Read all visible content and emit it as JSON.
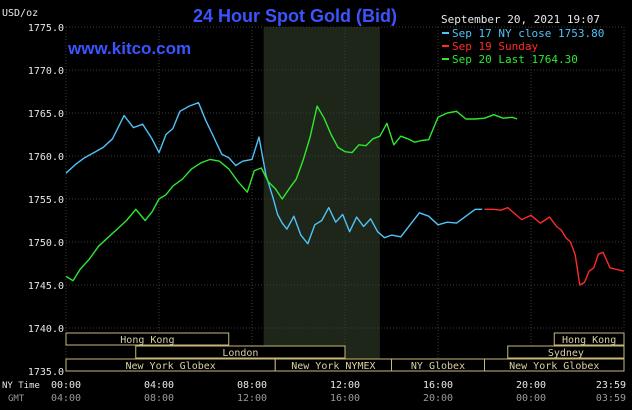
{
  "chart_data": {
    "type": "line",
    "title": "24 Hour Spot Gold (Bid)",
    "watermark": "www.kitco.com",
    "datetime": "September 20, 2021 19:07",
    "ylabel": "USD/oz",
    "ylim": [
      1735.0,
      1775.0
    ],
    "yticks": [
      "1775.0",
      "1770.0",
      "1765.0",
      "1760.0",
      "1755.0",
      "1750.0",
      "1745.0",
      "1740.0",
      "1735.0"
    ],
    "xlim": [
      0,
      24
    ],
    "xtick_labels_ny": [
      "00:00",
      "04:00",
      "08:00",
      "12:00",
      "16:00",
      "20:00",
      "23:59"
    ],
    "xtick_labels_gmt": [
      "04:00",
      "08:00",
      "12:00",
      "16:00",
      "20:00",
      "00:00",
      "03:59"
    ],
    "xlabel_ny": "NY Time",
    "xlabel_gmt": "GMT",
    "highlight_band_hours": [
      8.5,
      13.5
    ],
    "legend": [
      {
        "label": "Sep 17 NY close 1753.80",
        "color": "#4fc3f7"
      },
      {
        "label": "Sep 19 Sunday",
        "color": "#ff2a2a"
      },
      {
        "label": "Sep 20 Last 1764.30",
        "color": "#2ee82e"
      }
    ],
    "series": [
      {
        "name": "Sep 17 NY close 1753.80",
        "color": "#4fc3f7",
        "x": [
          0,
          0.4,
          0.8,
          1.2,
          1.6,
          2.0,
          2.5,
          2.9,
          3.3,
          3.7,
          4.0,
          4.3,
          4.6,
          4.9,
          5.3,
          5.7,
          6.0,
          6.3,
          6.7,
          7.0,
          7.3,
          7.6,
          8.0,
          8.3,
          8.6,
          8.9,
          9.1,
          9.3,
          9.5,
          9.8,
          10.1,
          10.4,
          10.7,
          11.0,
          11.3,
          11.6,
          11.9,
          12.2,
          12.5,
          12.8,
          13.1,
          13.4,
          13.7,
          14.0,
          14.4,
          14.8,
          15.2,
          15.6,
          16.0,
          16.4,
          16.8,
          17.2,
          17.6,
          17.9
        ],
        "y": [
          1758.0,
          1759.0,
          1759.8,
          1760.4,
          1761.0,
          1762.0,
          1764.7,
          1763.3,
          1763.7,
          1762.0,
          1760.4,
          1762.5,
          1763.2,
          1765.2,
          1765.8,
          1766.2,
          1764.2,
          1762.5,
          1760.2,
          1759.8,
          1758.9,
          1759.4,
          1759.6,
          1762.2,
          1757.8,
          1755.2,
          1753.2,
          1752.2,
          1751.5,
          1753.0,
          1750.8,
          1749.8,
          1752.0,
          1752.5,
          1754.0,
          1752.3,
          1753.2,
          1751.2,
          1752.9,
          1751.8,
          1752.7,
          1751.2,
          1750.5,
          1750.8,
          1750.6,
          1752.0,
          1753.4,
          1753.0,
          1752.0,
          1752.3,
          1752.2,
          1753.0,
          1753.8,
          1753.8
        ]
      },
      {
        "name": "Sep 19 Sunday",
        "color": "#ff2a2a",
        "x": [
          18.0,
          18.4,
          18.7,
          19.0,
          19.3,
          19.6,
          20.0,
          20.4,
          20.8,
          21.1,
          21.3,
          21.5,
          21.7,
          21.9,
          22.1,
          22.3,
          22.5,
          22.7,
          22.9,
          23.1,
          23.4,
          23.7,
          23.99
        ],
        "y": [
          1753.8,
          1753.8,
          1753.7,
          1754.0,
          1753.3,
          1752.6,
          1753.1,
          1752.2,
          1752.9,
          1751.8,
          1751.4,
          1750.5,
          1750.0,
          1748.5,
          1745.0,
          1745.3,
          1746.6,
          1747.0,
          1748.6,
          1748.8,
          1747.0,
          1746.8,
          1746.6
        ]
      },
      {
        "name": "Sep 20 Last 1764.30",
        "color": "#2ee82e",
        "x": [
          0,
          0.3,
          0.6,
          1.0,
          1.4,
          1.8,
          2.2,
          2.6,
          3.0,
          3.4,
          3.7,
          4.0,
          4.3,
          4.6,
          5.0,
          5.4,
          5.8,
          6.2,
          6.6,
          7.0,
          7.4,
          7.8,
          8.1,
          8.4,
          8.7,
          9.0,
          9.3,
          9.6,
          9.9,
          10.2,
          10.5,
          10.8,
          11.1,
          11.4,
          11.7,
          12.0,
          12.3,
          12.6,
          12.9,
          13.2,
          13.5,
          13.8,
          14.1,
          14.4,
          14.7,
          15.0,
          15.3,
          15.6,
          16.0,
          16.4,
          16.8,
          17.2,
          17.6,
          18.0,
          18.4,
          18.8,
          19.2,
          19.4
        ],
        "y": [
          1746.0,
          1745.5,
          1746.8,
          1748.0,
          1749.5,
          1750.5,
          1751.5,
          1752.5,
          1753.8,
          1752.5,
          1753.5,
          1755.0,
          1755.5,
          1756.5,
          1757.3,
          1758.5,
          1759.2,
          1759.6,
          1759.4,
          1758.5,
          1757.0,
          1755.8,
          1758.3,
          1758.6,
          1757.0,
          1756.2,
          1755.0,
          1756.2,
          1757.3,
          1759.5,
          1762.2,
          1765.8,
          1764.4,
          1762.5,
          1761.0,
          1760.5,
          1760.4,
          1761.3,
          1761.2,
          1762.0,
          1762.3,
          1763.8,
          1761.3,
          1762.3,
          1762.0,
          1761.6,
          1761.8,
          1761.9,
          1764.5,
          1765.0,
          1765.2,
          1764.3,
          1764.3,
          1764.4,
          1764.8,
          1764.4,
          1764.5,
          1764.3
        ]
      }
    ],
    "market_sessions": [
      {
        "name": "Hong Kong",
        "start": 0.0,
        "end": 7.0
      },
      {
        "name": "Hong Kong",
        "start": 21.0,
        "end": 24.0
      },
      {
        "name": "London",
        "start": 3.0,
        "end": 12.0
      },
      {
        "name": "Sydney",
        "start": 19.0,
        "end": 24.0
      },
      {
        "name": "New York Globex",
        "start": 0.0,
        "end": 9.0
      },
      {
        "name": "New York NYMEX",
        "start": 9.0,
        "end": 14.0
      },
      {
        "name": "NY Globex",
        "start": 14.0,
        "end": 18.0
      },
      {
        "name": "New York Globex",
        "start": 18.0,
        "end": 24.0
      }
    ]
  }
}
